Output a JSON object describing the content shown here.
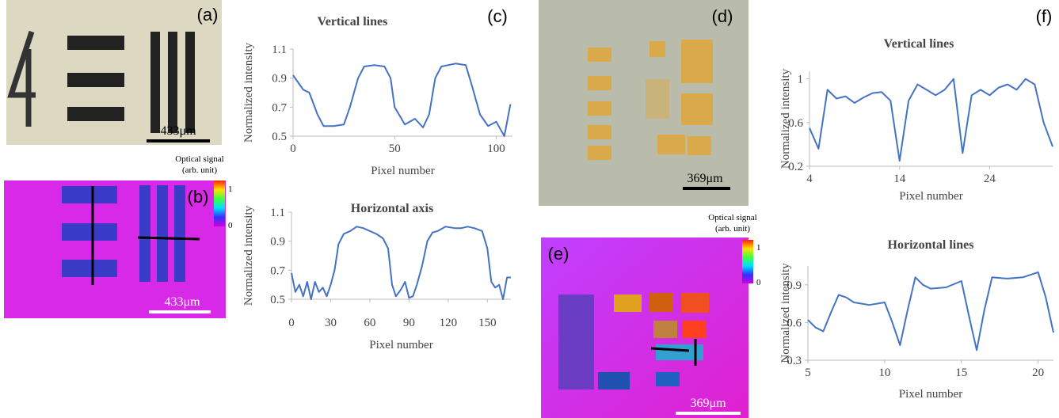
{
  "figure": {
    "panel_labels": [
      "(a)",
      "(b)",
      "(c)",
      "(d)",
      "(e)",
      "(f)"
    ],
    "scale_bars": {
      "a": "433μm",
      "b": "433μm",
      "d": "369μm",
      "e": "369μm"
    },
    "colorbar_b": {
      "title": [
        "Optical signal",
        "(arb. unit)"
      ],
      "max": "1",
      "min": "0"
    },
    "colorbar_e": {
      "title": [
        "Optical signal",
        "(arb. unit)"
      ],
      "max": "1",
      "min": "0"
    }
  },
  "chart_data": [
    {
      "type": "line",
      "title": "Vertical lines",
      "x_label": "Pixel number",
      "y_label": "Normalized intensity",
      "color": "#4472c4",
      "x": [
        0,
        5,
        8,
        12,
        15,
        20,
        25,
        28,
        32,
        35,
        40,
        45,
        48,
        50,
        55,
        60,
        64,
        67,
        70,
        73,
        80,
        85,
        88,
        92,
        96,
        100,
        104,
        107
      ],
      "values": [
        0.92,
        0.82,
        0.8,
        0.65,
        0.57,
        0.57,
        0.58,
        0.7,
        0.9,
        0.98,
        0.99,
        0.98,
        0.9,
        0.7,
        0.58,
        0.62,
        0.56,
        0.65,
        0.9,
        0.98,
        1.0,
        0.99,
        0.85,
        0.65,
        0.57,
        0.6,
        0.5,
        0.72
      ],
      "xlim": [
        0,
        108
      ],
      "xticks": [
        0,
        50,
        100
      ],
      "ylim": [
        0.5,
        1.1
      ],
      "yticks": [
        0.5,
        0.7,
        0.9,
        1.1
      ]
    },
    {
      "type": "line",
      "title": "Horizontal axis",
      "x_label": "Pixel number",
      "y_label": "Normalized intensity",
      "color": "#4472c4",
      "x": [
        0,
        3,
        6,
        9,
        12,
        15,
        18,
        21,
        24,
        27,
        30,
        33,
        36,
        40,
        45,
        50,
        55,
        60,
        65,
        70,
        74,
        77,
        80,
        84,
        87,
        90,
        93,
        96,
        100,
        104,
        108,
        112,
        118,
        125,
        130,
        135,
        140,
        146,
        150,
        153,
        156,
        159,
        162,
        165,
        168
      ],
      "values": [
        0.68,
        0.55,
        0.6,
        0.52,
        0.62,
        0.5,
        0.62,
        0.55,
        0.58,
        0.52,
        0.6,
        0.7,
        0.88,
        0.95,
        0.97,
        1.0,
        0.99,
        0.97,
        0.95,
        0.92,
        0.85,
        0.6,
        0.52,
        0.57,
        0.62,
        0.51,
        0.52,
        0.6,
        0.73,
        0.9,
        0.96,
        0.97,
        1.0,
        0.99,
        0.99,
        1.0,
        0.99,
        0.97,
        0.85,
        0.62,
        0.58,
        0.6,
        0.5,
        0.65,
        0.65
      ],
      "xlim": [
        0,
        168
      ],
      "xticks": [
        0,
        30,
        60,
        90,
        120,
        150
      ],
      "ylim": [
        0.5,
        1.1
      ],
      "yticks": [
        0.5,
        0.7,
        0.9,
        1.1
      ]
    },
    {
      "type": "line",
      "title": "Vertical lines",
      "x_label": "Pixel number",
      "y_label": "Normalized intensity",
      "color": "#4472c4",
      "x": [
        4,
        5,
        6,
        7,
        8,
        9,
        10,
        11,
        12,
        13,
        14,
        15,
        16,
        17,
        18,
        19,
        20,
        21,
        22,
        23,
        24,
        25,
        26,
        27,
        28,
        29,
        30,
        31
      ],
      "values": [
        0.55,
        0.36,
        0.9,
        0.82,
        0.84,
        0.78,
        0.83,
        0.87,
        0.88,
        0.8,
        0.25,
        0.8,
        0.95,
        0.9,
        0.85,
        0.9,
        1.0,
        0.32,
        0.85,
        0.9,
        0.85,
        0.92,
        0.95,
        0.9,
        1.0,
        0.95,
        0.6,
        0.38
      ],
      "xlim": [
        4,
        31
      ],
      "xticks": [
        4,
        14,
        24
      ],
      "ylim": [
        0.2,
        1.07
      ],
      "yticks": [
        0.2,
        0.6,
        1
      ]
    },
    {
      "type": "line",
      "title": "Horizontal lines",
      "x_label": "Pixel number",
      "y_label": "Normalized intensity",
      "color": "#4472c4",
      "x": [
        5,
        5.5,
        6,
        6.5,
        7,
        7.5,
        8,
        9,
        10,
        10.5,
        11,
        11.5,
        12,
        12.5,
        13,
        14,
        15,
        15.5,
        16,
        16.5,
        17,
        18,
        19,
        20,
        20.5,
        21
      ],
      "values": [
        0.62,
        0.56,
        0.53,
        0.68,
        0.82,
        0.8,
        0.76,
        0.74,
        0.76,
        0.6,
        0.42,
        0.7,
        0.96,
        0.9,
        0.87,
        0.88,
        0.93,
        0.65,
        0.38,
        0.7,
        0.96,
        0.95,
        0.96,
        1.0,
        0.8,
        0.52
      ],
      "xlim": [
        5,
        21
      ],
      "xticks": [
        5,
        10,
        15,
        20
      ],
      "ylim": [
        0.3,
        1.05
      ],
      "yticks": [
        0.3,
        0.6,
        0.9
      ]
    }
  ]
}
